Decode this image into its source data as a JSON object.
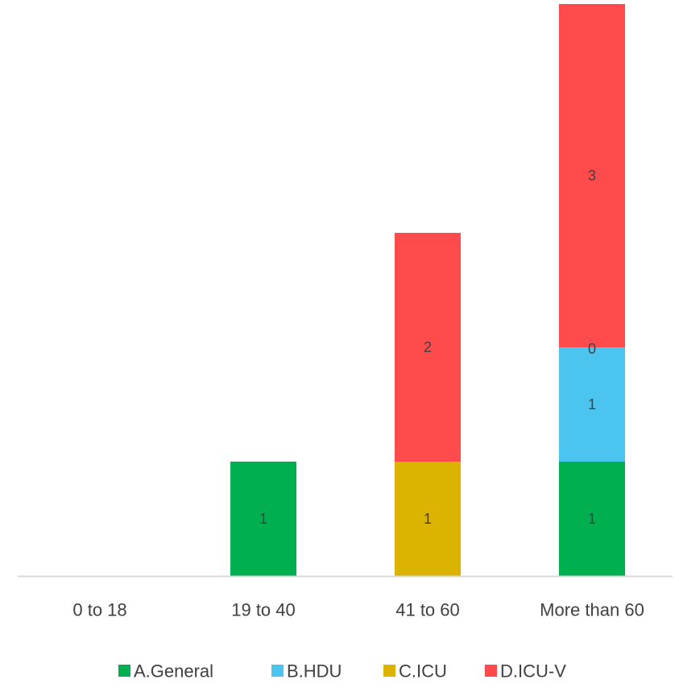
{
  "chart_data": {
    "type": "bar",
    "stacked": true,
    "title": "",
    "xlabel": "",
    "ylabel": "",
    "categories": [
      "0 to 18",
      "19 to 40",
      "41 to 60",
      "More than 60"
    ],
    "ylim": [
      0,
      5
    ],
    "grid": false,
    "legend": "bottom",
    "series": [
      {
        "name": "A.General",
        "color": "#00b050",
        "values": [
          0,
          1,
          0,
          1
        ],
        "labels": [
          "",
          "1",
          "",
          "1"
        ]
      },
      {
        "name": "B.HDU",
        "color": "#4bc5f0",
        "values": [
          0,
          0,
          0,
          1
        ],
        "labels": [
          "",
          "",
          "",
          "1"
        ]
      },
      {
        "name": "C.ICU",
        "color": "#dcb300",
        "values": [
          0,
          0,
          1,
          0
        ],
        "labels": [
          "",
          "",
          "1",
          "0"
        ]
      },
      {
        "name": "D.ICU-V",
        "color": "#ff4b4b",
        "values": [
          0,
          0,
          2,
          3
        ],
        "labels": [
          "",
          "",
          "2",
          "3"
        ]
      }
    ],
    "label_color": "#404040",
    "axis_color": "#d9d9d9",
    "tick_color": "#404040"
  }
}
